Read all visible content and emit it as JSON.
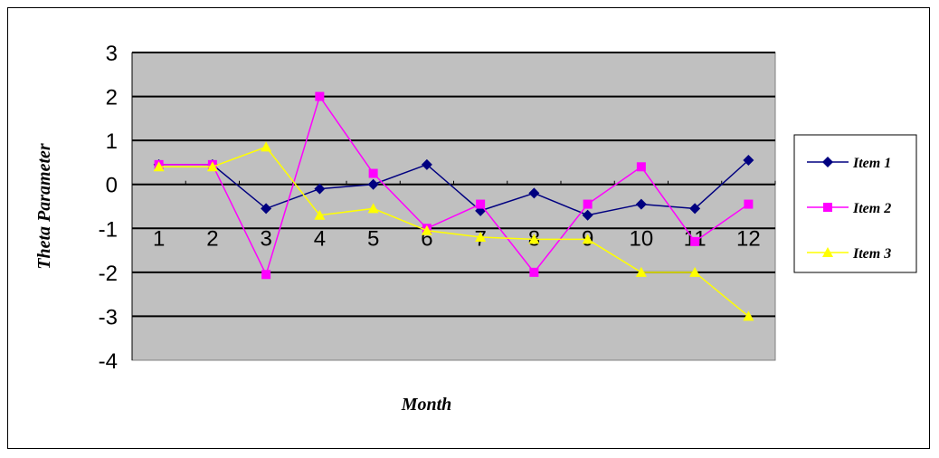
{
  "chart_data": {
    "type": "line",
    "x": [
      "1",
      "2",
      "3",
      "4",
      "5",
      "6",
      "7",
      "8",
      "9",
      "10",
      "11",
      "12"
    ],
    "series": [
      {
        "name": "Item 1",
        "color": "#000080",
        "marker": "diamond",
        "values": [
          0.45,
          0.45,
          -0.55,
          -0.1,
          0.0,
          0.45,
          -0.6,
          -0.2,
          -0.7,
          -0.45,
          -0.55,
          0.55
        ]
      },
      {
        "name": "Item 2",
        "color": "#FF00FF",
        "marker": "square",
        "values": [
          0.45,
          0.45,
          -2.05,
          2.0,
          0.25,
          -1.0,
          -0.45,
          -2.0,
          -0.45,
          0.4,
          -1.3,
          -0.45
        ]
      },
      {
        "name": "Item 3",
        "color": "#FFFF00",
        "marker": "triangle",
        "values": [
          0.4,
          0.4,
          0.85,
          -0.7,
          -0.55,
          -1.05,
          -1.2,
          -1.25,
          -1.25,
          -2.0,
          -2.0,
          -3.0
        ]
      }
    ],
    "yticks": [
      "3",
      "2",
      "1",
      "0",
      "-1",
      "-2",
      "-3",
      "-4"
    ],
    "ylim": [
      -4,
      3
    ],
    "xlabel": "Month",
    "ylabel": "Theta Parameter",
    "grid": "horizontal",
    "plot_background": "#C0C0C0",
    "legend": "right"
  }
}
